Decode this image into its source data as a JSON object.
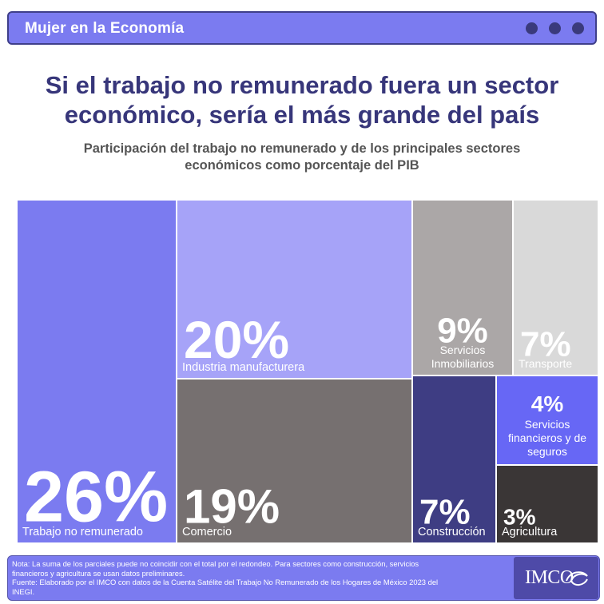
{
  "header": {
    "title": "Mujer en la Economía"
  },
  "headline": [
    "Si el trabajo no remunerado fuera un sector",
    "económico, sería el más grande del país"
  ],
  "subtitle": [
    "Participación del trabajo no remunerado y de los principales sectores",
    "económicos como porcentaje del PIB"
  ],
  "chart_data": {
    "type": "treemap",
    "unit": "%",
    "items": [
      {
        "label": [
          "Trabajo no remunerado"
        ],
        "value": 26,
        "display": "26%",
        "color": "#7b7bf0"
      },
      {
        "label": [
          "Industria manufacturera"
        ],
        "value": 20,
        "display": "20%",
        "color": "#a6a3f8"
      },
      {
        "label": [
          "Comercio"
        ],
        "value": 19,
        "display": "19%",
        "color": "#767070"
      },
      {
        "label": [
          "Servicios",
          "Inmobiliarios"
        ],
        "value": 9,
        "display": "9%",
        "color": "#aba7a7"
      },
      {
        "label": [
          "Transporte"
        ],
        "value": 7,
        "display": "7%",
        "color": "#d9d9d9"
      },
      {
        "label": [
          "Construcción"
        ],
        "value": 7,
        "display": "7%",
        "color": "#3e3d83"
      },
      {
        "label": [
          "Servicios",
          "financieros y de",
          "seguros"
        ],
        "value": 4,
        "display": "4%",
        "color": "#6767f5"
      },
      {
        "label": [
          "Agricultura"
        ],
        "value": 3,
        "display": "3%",
        "color": "#3a3636"
      }
    ]
  },
  "footer": {
    "notes": [
      "Nota: La suma de los parciales puede no coincidir con el total por el redondeo. Para sectores como construcción, servicios",
      "financieros y agricultura se usan datos preliminares.",
      "Fuente: Elaborado por el IMCO con datos de la Cuenta Satélite del Trabajo No Remunerado de los Hogares de México 2023 del",
      "INEGI."
    ],
    "logo": "IMCO"
  }
}
